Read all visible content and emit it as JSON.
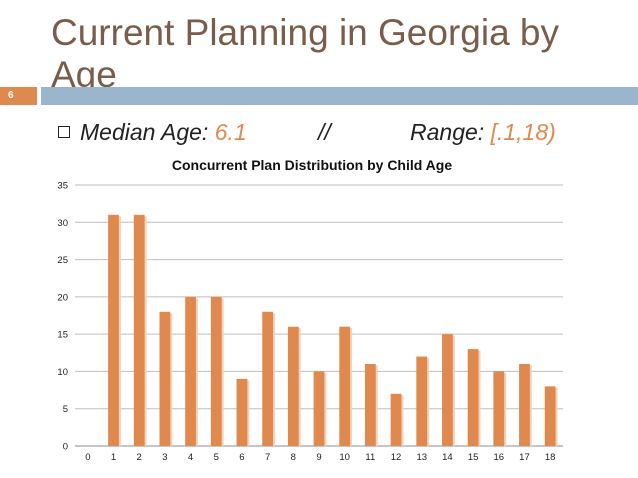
{
  "slide": {
    "title": "Current Planning in Georgia by Age",
    "number": "6",
    "bullet": {
      "median_label": "Median Age: ",
      "median_value": "6.1",
      "separator": "//",
      "range_label": "Range: ",
      "range_value": "[.1,18)"
    }
  },
  "colors": {
    "accent": "#e0894f",
    "bar_fill": "#e0894f",
    "bar_shadow": "#f0d2bd",
    "title_text": "#7a5c4a",
    "rule_blue": "#9bb6cc"
  },
  "chart_data": {
    "type": "bar",
    "title": "Concurrent Plan Distribution by Child Age",
    "xlabel": "",
    "ylabel": "",
    "categories": [
      "0",
      "1",
      "2",
      "3",
      "4",
      "5",
      "6",
      "7",
      "8",
      "9",
      "10",
      "11",
      "12",
      "13",
      "14",
      "15",
      "16",
      "17",
      "18"
    ],
    "values": [
      0,
      31,
      31,
      18,
      20,
      20,
      9,
      18,
      16,
      10,
      16,
      11,
      7,
      12,
      15,
      13,
      10,
      11,
      8
    ],
    "ylim": [
      0,
      35
    ],
    "yticks": [
      0,
      5,
      10,
      15,
      20,
      25,
      30,
      35
    ],
    "grid": true,
    "legend": "none"
  }
}
